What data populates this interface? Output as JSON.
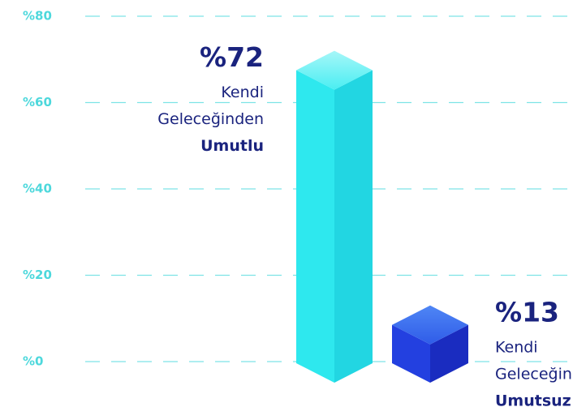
{
  "chart_data": {
    "type": "bar3d",
    "categories": [
      [
        "Kendi",
        "Geleceğinden",
        "Umutlu"
      ],
      [
        "Kendi",
        "Geleceğinden",
        "Umutsuz"
      ]
    ],
    "values": [
      72,
      13
    ],
    "value_labels": [
      "%72",
      "%13"
    ],
    "colors": [
      "#2ee8ee",
      "#2340e0"
    ],
    "ylim": [
      0,
      80
    ],
    "yticks": [
      {
        "value": 0,
        "label": "%0"
      },
      {
        "value": 20,
        "label": "%20"
      },
      {
        "value": 40,
        "label": "%40"
      },
      {
        "value": 60,
        "label": "%60"
      },
      {
        "value": 80,
        "label": "%80"
      }
    ],
    "grid": true
  }
}
